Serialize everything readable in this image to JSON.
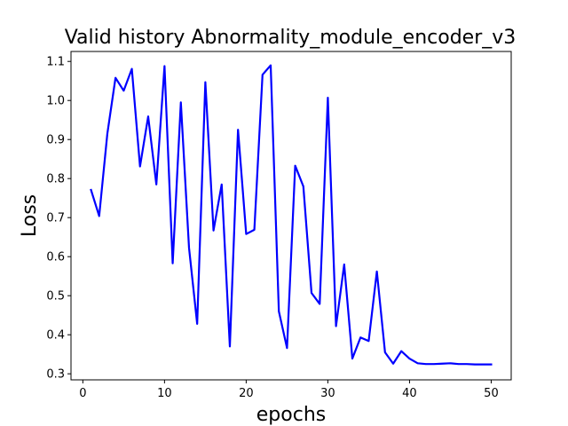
{
  "chart_data": {
    "type": "line",
    "title": "Valid history Abnormality_module_encoder_v3",
    "xlabel": "epochs",
    "ylabel": "Loss",
    "xlim": [
      -1.45,
      52.45
    ],
    "ylim": [
      0.2845,
      1.1255
    ],
    "xticks": [
      0,
      10,
      20,
      30,
      40,
      50
    ],
    "yticks": [
      0.3,
      0.4,
      0.5,
      0.6,
      0.7,
      0.8,
      0.9,
      1.0,
      1.1
    ],
    "grid": false,
    "legend": "none",
    "color": "#0000ff",
    "series": [
      {
        "x": [
          1,
          2,
          3,
          4,
          5,
          6,
          7,
          8,
          9,
          10,
          11,
          12,
          13,
          14,
          15,
          16,
          17,
          18,
          19,
          20,
          21,
          22,
          23,
          24,
          25,
          26,
          27,
          28,
          29,
          30,
          31,
          32,
          33,
          34,
          35,
          36,
          37,
          38,
          39,
          40,
          41,
          42,
          43,
          44,
          45,
          46,
          47,
          48,
          49,
          50
        ],
        "values": [
          0.771,
          0.704,
          0.915,
          1.058,
          1.025,
          1.081,
          0.831,
          0.959,
          0.785,
          1.088,
          0.583,
          0.995,
          0.623,
          0.428,
          1.047,
          0.667,
          0.785,
          0.37,
          0.925,
          0.658,
          0.669,
          1.066,
          1.09,
          0.46,
          0.366,
          0.833,
          0.78,
          0.507,
          0.479,
          1.007,
          0.422,
          0.58,
          0.339,
          0.393,
          0.384,
          0.562,
          0.355,
          0.326,
          0.358,
          0.339,
          0.327,
          0.325,
          0.325,
          0.326,
          0.327,
          0.325,
          0.325,
          0.324,
          0.324,
          0.324
        ]
      }
    ]
  }
}
